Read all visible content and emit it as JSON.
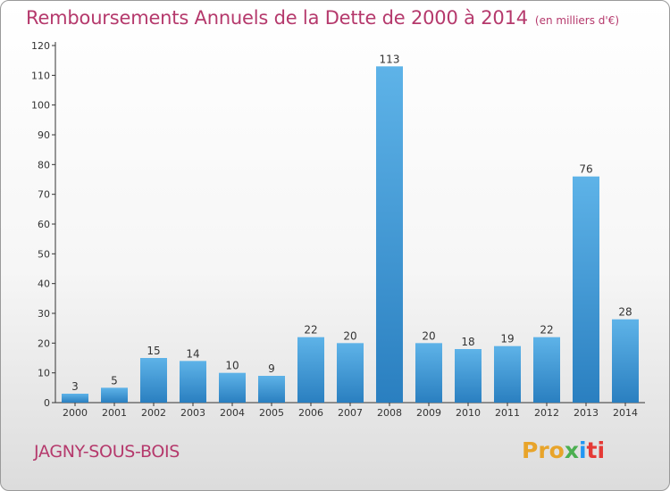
{
  "title": "Remboursements Annuels de la Dette de 2000 à 2014",
  "unit_note": "(en milliers d'€)",
  "city": "JAGNY-SOUS-BOIS",
  "logo": [
    "Pro",
    "x",
    "i",
    "ti"
  ],
  "colors": {
    "accent": "#b5396c",
    "bar_light": "#5eb3e8",
    "bar_dark": "#2a7fc0"
  },
  "chart_data": {
    "type": "bar",
    "categories": [
      "2000",
      "2001",
      "2002",
      "2003",
      "2004",
      "2005",
      "2006",
      "2007",
      "2008",
      "2009",
      "2010",
      "2011",
      "2012",
      "2013",
      "2014"
    ],
    "values": [
      3,
      5,
      15,
      14,
      10,
      9,
      22,
      20,
      113,
      20,
      18,
      19,
      22,
      76,
      28
    ],
    "ylim": [
      0,
      120
    ],
    "yticks": [
      0,
      10,
      20,
      30,
      40,
      50,
      60,
      70,
      80,
      90,
      100,
      110,
      120
    ],
    "grid": false,
    "data_labels": true
  }
}
